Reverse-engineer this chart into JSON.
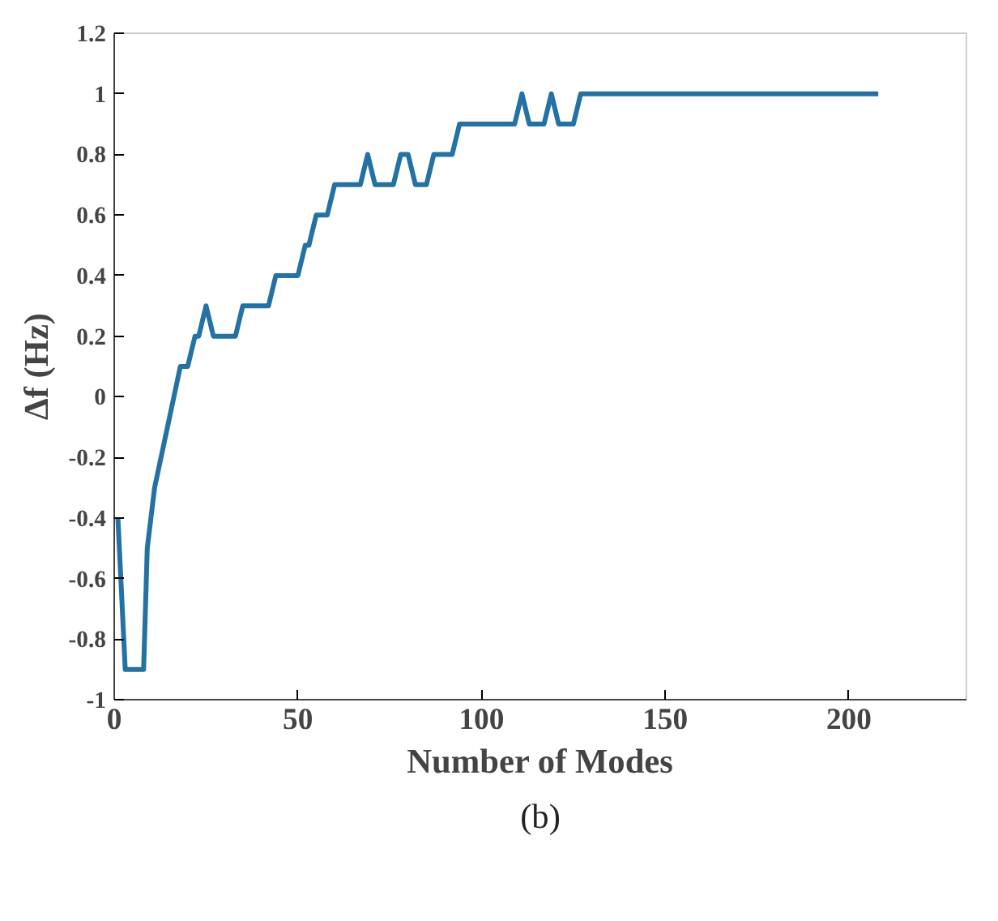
{
  "chart_data": {
    "type": "line",
    "xlabel": "Number of Modes",
    "ylabel": "Δf (Hz)",
    "x": [
      1,
      3,
      8,
      9,
      11,
      18,
      20,
      22,
      23,
      25,
      27,
      33,
      35,
      42,
      44,
      50,
      52,
      53,
      55,
      58,
      60,
      67,
      69,
      71,
      76,
      78,
      80,
      82,
      85,
      87,
      92,
      94,
      109,
      111,
      113,
      117,
      119,
      121,
      125,
      127,
      208
    ],
    "series": [
      {
        "color": "#2471a3",
        "values": [
          -0.4,
          -0.9,
          -0.9,
          -0.5,
          -0.3,
          0.1,
          0.1,
          0.2,
          0.2,
          0.3,
          0.2,
          0.2,
          0.3,
          0.3,
          0.4,
          0.4,
          0.5,
          0.5,
          0.6,
          0.6,
          0.7,
          0.7,
          0.8,
          0.7,
          0.7,
          0.8,
          0.8,
          0.7,
          0.7,
          0.8,
          0.8,
          0.9,
          0.9,
          1,
          0.9,
          0.9,
          1,
          0.9,
          0.9,
          1,
          1
        ]
      }
    ],
    "xlim": [
      0,
      232
    ],
    "ylim": [
      -1,
      1.2
    ],
    "xticks": [
      0,
      50,
      100,
      150,
      200
    ],
    "yticks": [
      -1,
      -0.8,
      -0.6,
      -0.4,
      -0.2,
      0,
      0.2,
      0.4,
      0.6,
      0.8,
      1,
      1.2
    ],
    "grid": false,
    "marker": "none",
    "line_style": "solid",
    "annotations": [
      "(b)"
    ]
  }
}
